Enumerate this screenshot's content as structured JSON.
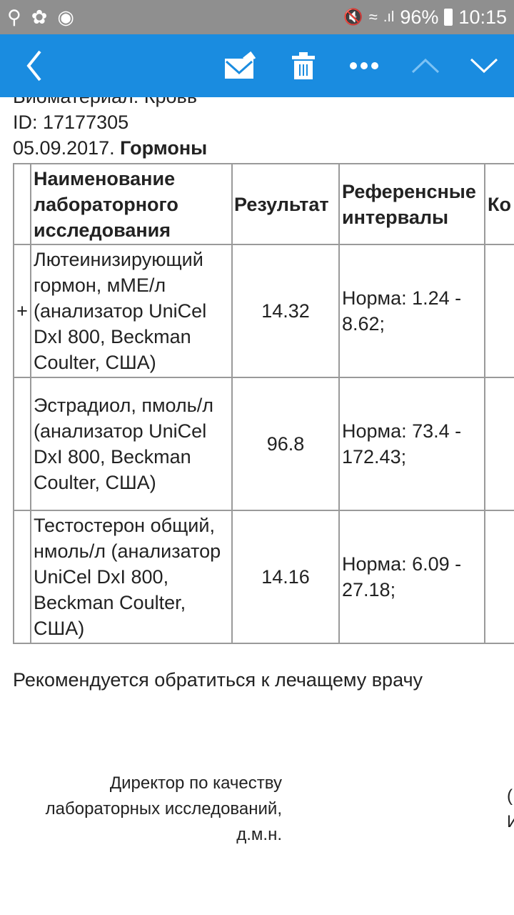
{
  "status_bar": {
    "battery": "96%",
    "time": "10:15",
    "icons": [
      "search-icon",
      "uc-browser-icon",
      "shield-icon",
      "mute-icon",
      "wifi-icon",
      "signal-icon",
      "battery-icon"
    ]
  },
  "toolbar": {
    "icons": [
      "back-icon",
      "move-mail-icon",
      "trash-icon",
      "more-icon",
      "up-icon",
      "down-icon"
    ]
  },
  "doc": {
    "biomaterial": "Биоматериал: Кровь",
    "id": "ID: 17177305",
    "date": "05.09.2017.",
    "section": "Гормоны",
    "headers": [
      "",
      "Наименование лабораторного исследования",
      "Результат",
      "Референсные интервалы",
      "Ко"
    ],
    "rows": [
      {
        "flag": "+",
        "name": "Лютеинизирующий гормон, мМЕ/л (анализатор UniCel DxI 800, Beckman Coulter, США)",
        "result": "14.32",
        "ref": "Норма:   1.24 - 8.62;"
      },
      {
        "flag": "",
        "name": "Эстрадиол, пмоль/л (анализатор UniCel DxI 800, Beckman Coulter, США)",
        "result": "96.8",
        "ref": "Норма:   73.4 - 172.43;"
      },
      {
        "flag": "",
        "name": "Тестостерон общий, нмоль/л (анализатор UniCel DxI 800, Beckman Coulter, США)",
        "result": "14.16",
        "ref": "Норма:   6.09 - 27.18;"
      }
    ],
    "recommendation": "Рекомендуется обратиться к лечащему врачу",
    "signature": [
      "Директор по качеству",
      "лабораторных исследований,",
      "д.м.н."
    ],
    "cut_right": [
      "(",
      "И"
    ]
  }
}
